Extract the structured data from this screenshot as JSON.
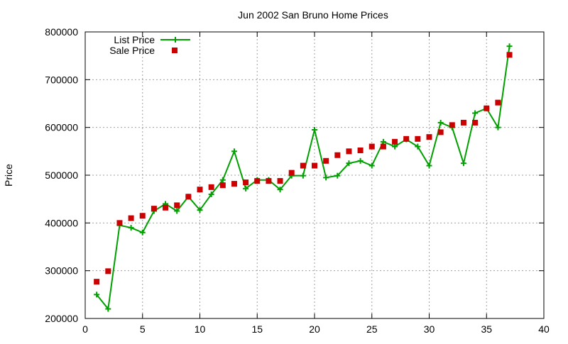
{
  "chart_data": {
    "type": "line",
    "title": "Jun 2002 San Bruno Home Prices",
    "xlabel": "",
    "ylabel": "Price",
    "xlim": [
      0,
      40
    ],
    "ylim": [
      200000,
      800000
    ],
    "xticks": [
      0,
      5,
      10,
      15,
      20,
      25,
      30,
      35,
      40
    ],
    "yticks": [
      200000,
      300000,
      400000,
      500000,
      600000,
      700000,
      800000
    ],
    "grid": true,
    "legend_position": "top-left",
    "x": [
      1,
      2,
      3,
      4,
      5,
      6,
      7,
      8,
      9,
      10,
      11,
      12,
      13,
      14,
      15,
      16,
      17,
      18,
      19,
      20,
      21,
      22,
      23,
      24,
      25,
      26,
      27,
      28,
      29,
      30,
      31,
      32,
      33,
      34,
      35,
      36,
      37
    ],
    "series": [
      {
        "name": "List Price",
        "style": "line-plus",
        "color": "#00a000",
        "values": [
          250000,
          220000,
          395000,
          390000,
          380000,
          425000,
          440000,
          425000,
          455000,
          427000,
          460000,
          490000,
          550000,
          472000,
          490000,
          490000,
          470000,
          499000,
          499000,
          595000,
          495000,
          499000,
          525000,
          530000,
          520000,
          570000,
          560000,
          575000,
          560000,
          520000,
          610000,
          600000,
          525000,
          630000,
          640000,
          600000,
          770000
        ]
      },
      {
        "name": "Sale Price",
        "style": "square",
        "color": "#cc0000",
        "values": [
          277000,
          299000,
          400000,
          410000,
          415000,
          430000,
          432000,
          437000,
          455000,
          470000,
          475000,
          479000,
          482000,
          485000,
          488000,
          488000,
          488000,
          505000,
          520000,
          520000,
          530000,
          542000,
          550000,
          552000,
          560000,
          560000,
          570000,
          576000,
          576000,
          580000,
          590000,
          605000,
          610000,
          610000,
          640000,
          652000,
          752000
        ]
      }
    ]
  },
  "colors": {
    "grid": "#a0a0a0",
    "axis": "#000000",
    "background": "#ffffff"
  }
}
